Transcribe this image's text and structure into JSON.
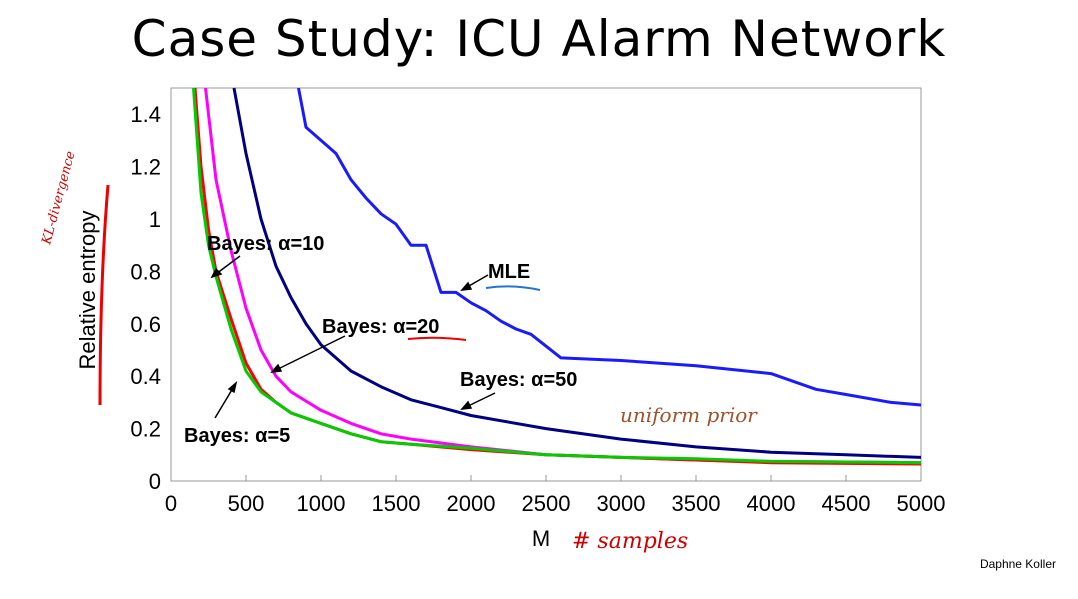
{
  "slide": {
    "title": "Case Study: ICU Alarm Network",
    "credit": "Daphne Koller"
  },
  "chart_data": {
    "type": "line",
    "xlabel": "M",
    "ylabel": "Relative entropy",
    "xlim": [
      0,
      5000
    ],
    "ylim": [
      0,
      1.5
    ],
    "x_ticks": [
      "0",
      "500",
      "1000",
      "1500",
      "2000",
      "2500",
      "3000",
      "3500",
      "4000",
      "4500",
      "5000"
    ],
    "y_ticks": [
      "0",
      "0.2",
      "0.4",
      "0.6",
      "0.8",
      "1",
      "1.2",
      "1.4"
    ],
    "grid": false,
    "series": [
      {
        "name": "MLE",
        "color": "#1a1aff",
        "points": [
          [
            850,
            1.5
          ],
          [
            900,
            1.35
          ],
          [
            1000,
            1.3
          ],
          [
            1100,
            1.25
          ],
          [
            1200,
            1.15
          ],
          [
            1300,
            1.08
          ],
          [
            1400,
            1.02
          ],
          [
            1500,
            0.98
          ],
          [
            1600,
            0.9
          ],
          [
            1700,
            0.9
          ],
          [
            1800,
            0.72
          ],
          [
            1900,
            0.72
          ],
          [
            2000,
            0.68
          ],
          [
            2100,
            0.65
          ],
          [
            2200,
            0.61
          ],
          [
            2300,
            0.58
          ],
          [
            2400,
            0.56
          ],
          [
            2600,
            0.47
          ],
          [
            3000,
            0.46
          ],
          [
            3500,
            0.44
          ],
          [
            4000,
            0.41
          ],
          [
            4300,
            0.35
          ],
          [
            4500,
            0.33
          ],
          [
            4800,
            0.3
          ],
          [
            5000,
            0.29
          ]
        ]
      },
      {
        "name": "Bayes: α=50",
        "color": "#000080",
        "points": [
          [
            420,
            1.5
          ],
          [
            500,
            1.25
          ],
          [
            600,
            1.0
          ],
          [
            700,
            0.82
          ],
          [
            800,
            0.7
          ],
          [
            900,
            0.6
          ],
          [
            1000,
            0.52
          ],
          [
            1200,
            0.42
          ],
          [
            1400,
            0.36
          ],
          [
            1600,
            0.31
          ],
          [
            1800,
            0.28
          ],
          [
            2000,
            0.25
          ],
          [
            2500,
            0.2
          ],
          [
            3000,
            0.16
          ],
          [
            3500,
            0.13
          ],
          [
            4000,
            0.11
          ],
          [
            4500,
            0.1
          ],
          [
            5000,
            0.09
          ]
        ]
      },
      {
        "name": "Bayes: α=20",
        "color": "#ff00ff",
        "points": [
          [
            230,
            1.5
          ],
          [
            300,
            1.15
          ],
          [
            400,
            0.88
          ],
          [
            500,
            0.66
          ],
          [
            600,
            0.5
          ],
          [
            700,
            0.4
          ],
          [
            800,
            0.34
          ],
          [
            1000,
            0.27
          ],
          [
            1200,
            0.22
          ],
          [
            1400,
            0.18
          ],
          [
            1600,
            0.16
          ],
          [
            2000,
            0.13
          ],
          [
            2500,
            0.1
          ],
          [
            3000,
            0.09
          ],
          [
            3500,
            0.08
          ],
          [
            4000,
            0.075
          ],
          [
            5000,
            0.07
          ]
        ]
      },
      {
        "name": "Bayes: α=10",
        "color": "#ff0000",
        "points": [
          [
            160,
            1.5
          ],
          [
            200,
            1.2
          ],
          [
            250,
            0.96
          ],
          [
            300,
            0.8
          ],
          [
            400,
            0.62
          ],
          [
            500,
            0.45
          ],
          [
            600,
            0.35
          ],
          [
            700,
            0.3
          ],
          [
            800,
            0.26
          ],
          [
            1000,
            0.22
          ],
          [
            1200,
            0.18
          ],
          [
            1400,
            0.15
          ],
          [
            1600,
            0.14
          ],
          [
            2000,
            0.12
          ],
          [
            2500,
            0.1
          ],
          [
            3000,
            0.09
          ],
          [
            3500,
            0.08
          ],
          [
            4000,
            0.07
          ],
          [
            5000,
            0.065
          ]
        ]
      },
      {
        "name": "Bayes: α=5",
        "color": "#00cc00",
        "points": [
          [
            150,
            1.5
          ],
          [
            200,
            1.1
          ],
          [
            250,
            0.9
          ],
          [
            300,
            0.78
          ],
          [
            400,
            0.58
          ],
          [
            500,
            0.42
          ],
          [
            600,
            0.34
          ],
          [
            700,
            0.3
          ],
          [
            800,
            0.26
          ],
          [
            1000,
            0.22
          ],
          [
            1200,
            0.18
          ],
          [
            1400,
            0.15
          ],
          [
            1600,
            0.14
          ],
          [
            2000,
            0.125
          ],
          [
            2500,
            0.1
          ],
          [
            3000,
            0.09
          ],
          [
            3500,
            0.085
          ],
          [
            4000,
            0.075
          ],
          [
            5000,
            0.07
          ]
        ]
      }
    ],
    "annotations": [
      "Bayes: α=10",
      "Bayes: α=20",
      "Bayes: α=50",
      "Bayes: α=5",
      "MLE"
    ],
    "handwritten": {
      "ylabel_note": "KL-divergence",
      "prior_note": "uniform prior",
      "xlabel_note": "# samples"
    }
  }
}
